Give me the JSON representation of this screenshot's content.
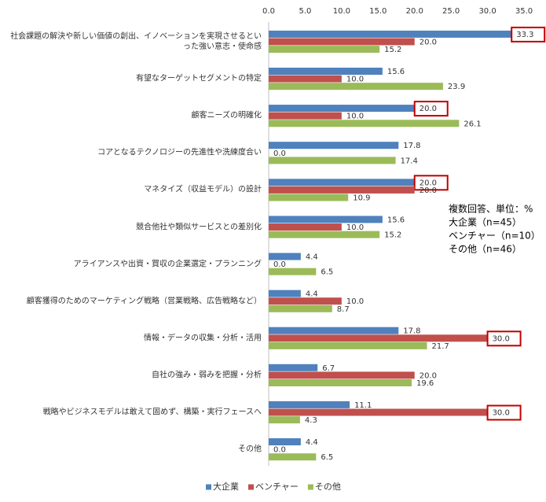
{
  "chart_data": {
    "type": "hbar",
    "categories": [
      "社会課題の解決や新しい価値の創出、イノベーションを実現させるといった強い意志・使命感",
      "有望なターゲットセグメントの特定",
      "顧客ニーズの明確化",
      "コアとなるテクノロジーの先進性や洗練度合い",
      "マネタイズ（収益モデル）の設計",
      "競合他社や類似サービスとの差別化",
      "アライアンスや出資・買収の企業選定・プランニング",
      "顧客獲得のためのマーケティング戦略（営業戦略、広告戦略など）",
      "情報・データの収集・分析・活用",
      "自社の強み・弱みを把握・分析",
      "戦略やビジネスモデルは敢えて固めず、構築・実行フェースへ",
      "その他"
    ],
    "series": [
      {
        "name": "大企業",
        "color": "#4f81bd",
        "values": [
          33.3,
          15.6,
          20.0,
          17.8,
          20.0,
          15.6,
          4.4,
          4.4,
          17.8,
          6.7,
          11.1,
          4.4
        ],
        "value_labels": [
          "33.3",
          "15.6",
          "20.0",
          "17.8",
          "20.0",
          "15.6",
          "4.4",
          "4.4",
          "17.8",
          "6.7",
          "11.1",
          "4.4"
        ],
        "highlighted": [
          0,
          2,
          4
        ]
      },
      {
        "name": "ベンチャー",
        "color": "#c0504d",
        "values": [
          20.0,
          10.0,
          10.0,
          0.0,
          20.0,
          10.0,
          0.0,
          10.0,
          30.0,
          20.0,
          30.0,
          0.0
        ],
        "value_labels": [
          "20.0",
          "10.0",
          "10.0",
          "0.0",
          "20.0",
          "10.0",
          "0.0",
          "10.0",
          "30.0",
          "20.0",
          "30.0",
          "0.0"
        ],
        "highlighted": [
          8,
          10
        ]
      },
      {
        "name": "その他",
        "color": "#9bbb59",
        "values": [
          15.2,
          23.9,
          26.1,
          17.4,
          10.9,
          15.2,
          6.5,
          8.7,
          21.7,
          19.6,
          4.3,
          6.5
        ],
        "value_labels": [
          "15.2",
          "23.9",
          "26.1",
          "17.4",
          "10.9",
          "15.2",
          "6.5",
          "8.7",
          "21.7",
          "19.6",
          "4.3",
          "6.5"
        ],
        "highlighted": []
      }
    ],
    "xlim": [
      0,
      35
    ],
    "xticks": [
      {
        "value": 0,
        "label": "0.0"
      },
      {
        "value": 5,
        "label": "5.0"
      },
      {
        "value": 10,
        "label": "10.0"
      },
      {
        "value": 15,
        "label": "15.0"
      },
      {
        "value": 20,
        "label": "20.0"
      },
      {
        "value": 25,
        "label": "25.0"
      },
      {
        "value": 30,
        "label": "30.0"
      },
      {
        "value": 35,
        "label": "35.0"
      }
    ],
    "notes": [
      "複数回答、単位：%",
      "大企業（n=45）",
      "ベンチャー（n=10）",
      "その他（n=46）"
    ],
    "highlight_color": "#c00000",
    "legend": "bottom"
  }
}
